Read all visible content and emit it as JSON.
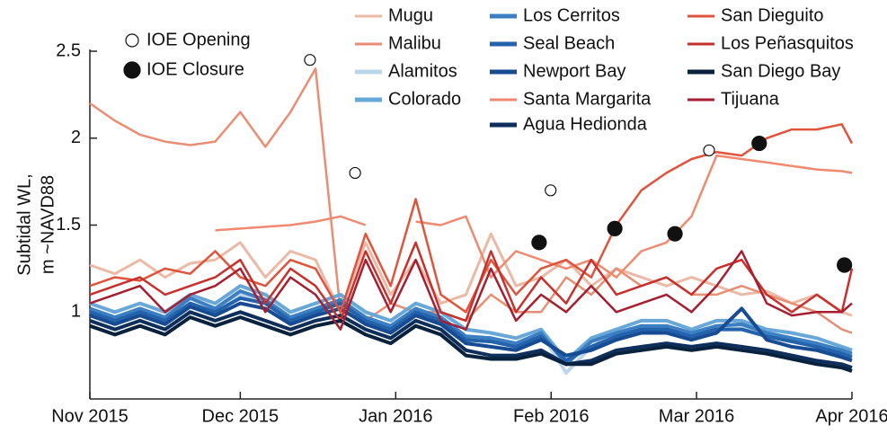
{
  "chart_data": {
    "type": "line",
    "ylabel": [
      "Subtidal WL,",
      "m ~NAVD88"
    ],
    "x": [
      0,
      5,
      10,
      15,
      20,
      25,
      30,
      35,
      40,
      45,
      50,
      55,
      60,
      65,
      70,
      75,
      80,
      85,
      90,
      95,
      100,
      105,
      110,
      115,
      120,
      125,
      130,
      135,
      140,
      145,
      150,
      152
    ],
    "xlim": [
      0,
      152
    ],
    "xticks": [
      {
        "value": 0,
        "label": "Nov 2015"
      },
      {
        "value": 30,
        "label": "Dec 2015"
      },
      {
        "value": 61,
        "label": "Jan 2016"
      },
      {
        "value": 92,
        "label": "Feb 2016"
      },
      {
        "value": 121,
        "label": "Mar 2016"
      },
      {
        "value": 152,
        "label": "Apr 2016"
      }
    ],
    "ylim": [
      0.5,
      2.5
    ],
    "yticks": [
      1,
      1.5,
      2,
      2.5
    ],
    "series": [
      {
        "name": "Mugu",
        "color": "#ebb9a6",
        "values": [
          1.27,
          1.22,
          1.3,
          1.2,
          1.28,
          1.3,
          1.4,
          1.2,
          1.35,
          1.3,
          1.0,
          1.4,
          1.1,
          1.3,
          1.05,
          1.1,
          1.45,
          1.15,
          1.2,
          1.3,
          1.15,
          1.25,
          1.2,
          1.15,
          1.2,
          1.15,
          1.1,
          1.12,
          1.05,
          1.1,
          1.0,
          0.98
        ]
      },
      {
        "name": "Malibu",
        "color": "#e98e74",
        "values": [
          2.2,
          2.1,
          2.02,
          1.98,
          1.96,
          1.98,
          2.15,
          1.95,
          2.15,
          2.4,
          1.0,
          0.95,
          1.05,
          1.0,
          1.0,
          0.95,
          1.1,
          1.0,
          1.0,
          1.2,
          1.1,
          1.25,
          1.15,
          1.2,
          1.1,
          1.1,
          1.15,
          1.1,
          1.05,
          1.0,
          0.9,
          0.88
        ]
      },
      {
        "name": "Alamitos",
        "color": "#bcd5ea",
        "values": [
          1.0,
          0.95,
          1.0,
          0.95,
          1.05,
          1.0,
          1.1,
          1.05,
          0.95,
          1.0,
          1.05,
          0.95,
          0.9,
          1.0,
          0.95,
          0.85,
          0.85,
          0.8,
          0.88,
          0.65,
          0.8,
          0.88,
          0.9,
          0.92,
          0.88,
          0.9,
          0.92,
          0.88,
          0.85,
          0.8,
          0.78,
          0.75
        ]
      },
      {
        "name": "Colorado",
        "color": "#68a8d8",
        "values": [
          1.05,
          1.0,
          1.05,
          1.0,
          1.1,
          1.05,
          1.15,
          1.1,
          1.0,
          1.05,
          1.1,
          1.0,
          0.95,
          1.05,
          1.0,
          0.9,
          0.88,
          0.85,
          0.9,
          0.72,
          0.85,
          0.9,
          0.95,
          0.95,
          0.9,
          0.95,
          0.95,
          0.9,
          0.88,
          0.85,
          0.8,
          0.78
        ]
      },
      {
        "name": "Los Cerritos",
        "color": "#3b7fc2",
        "values": [
          1.02,
          0.97,
          1.02,
          0.97,
          1.08,
          1.02,
          1.12,
          1.07,
          0.97,
          1.02,
          1.07,
          0.97,
          0.92,
          1.02,
          0.97,
          0.86,
          0.85,
          0.82,
          0.88,
          0.7,
          0.83,
          0.88,
          0.92,
          0.92,
          0.88,
          0.92,
          0.93,
          0.88,
          0.85,
          0.82,
          0.78,
          0.76
        ]
      },
      {
        "name": "Seal Beach",
        "color": "#2463ab",
        "values": [
          1.0,
          0.95,
          1.0,
          0.95,
          1.05,
          1.0,
          1.08,
          1.05,
          0.95,
          1.0,
          1.05,
          0.95,
          0.9,
          1.0,
          0.95,
          0.84,
          0.83,
          0.8,
          0.86,
          0.72,
          0.8,
          0.86,
          0.9,
          0.9,
          0.86,
          0.9,
          0.9,
          0.86,
          0.83,
          0.8,
          0.76,
          0.74
        ]
      },
      {
        "name": "Newport Bay",
        "color": "#184c92",
        "values": [
          0.98,
          0.93,
          0.98,
          0.93,
          1.03,
          0.98,
          1.05,
          1.02,
          0.93,
          0.98,
          1.02,
          0.93,
          0.88,
          0.98,
          0.93,
          0.82,
          0.8,
          0.78,
          0.84,
          0.75,
          0.78,
          0.84,
          0.88,
          0.88,
          0.84,
          0.88,
          1.02,
          0.84,
          0.8,
          0.78,
          0.74,
          0.72
        ]
      },
      {
        "name": "Santa Margarita",
        "color": "#ef8a70",
        "values": [
          null,
          null,
          null,
          null,
          null,
          1.47,
          1.48,
          1.49,
          1.5,
          1.52,
          1.55,
          1.5,
          null,
          1.52,
          1.5,
          1.55,
          1.2,
          1.35,
          1.3,
          1.25,
          1.3,
          1.2,
          1.35,
          1.4,
          1.55,
          1.9,
          1.88,
          1.86,
          1.84,
          1.82,
          1.81,
          1.8
        ]
      },
      {
        "name": "Agua Hedionda",
        "color": "#0e2e5c",
        "values": [
          0.95,
          0.9,
          0.95,
          0.9,
          1.0,
          0.95,
          1.0,
          0.95,
          0.9,
          0.95,
          0.98,
          0.9,
          0.85,
          0.95,
          0.9,
          0.78,
          0.75,
          0.75,
          0.78,
          0.7,
          0.72,
          0.78,
          0.8,
          0.82,
          0.8,
          0.82,
          0.8,
          0.78,
          0.75,
          0.72,
          0.7,
          0.68
        ]
      },
      {
        "name": "San Dieguito",
        "color": "#e0533c",
        "values": [
          1.15,
          1.2,
          1.18,
          1.25,
          1.22,
          1.35,
          1.2,
          1.15,
          1.3,
          1.25,
          1.0,
          1.45,
          1.15,
          1.65,
          1.1,
          1.0,
          1.3,
          1.1,
          1.25,
          1.3,
          1.2,
          1.5,
          1.7,
          1.8,
          1.88,
          1.92,
          1.9,
          2.0,
          2.05,
          2.05,
          2.08,
          1.97
        ]
      },
      {
        "name": "Los Peñasquitos",
        "color": "#c9302b",
        "values": [
          1.1,
          1.15,
          1.2,
          1.1,
          1.15,
          1.2,
          1.3,
          1.05,
          1.25,
          1.15,
          0.95,
          1.35,
          1.05,
          1.4,
          1.0,
          0.95,
          1.35,
          1.0,
          1.2,
          1.05,
          1.3,
          1.1,
          1.15,
          1.2,
          1.1,
          1.25,
          1.3,
          1.1,
          1.0,
          1.1,
          1.0,
          1.25
        ]
      },
      {
        "name": "San Diego Bay",
        "color": "#08213d",
        "values": [
          0.92,
          0.87,
          0.92,
          0.87,
          0.97,
          0.92,
          0.97,
          0.92,
          0.87,
          0.92,
          0.95,
          0.87,
          0.82,
          0.92,
          0.87,
          0.75,
          0.73,
          0.73,
          0.76,
          0.7,
          0.7,
          0.76,
          0.78,
          0.8,
          0.78,
          0.8,
          0.78,
          0.76,
          0.73,
          0.7,
          0.68,
          0.66
        ]
      },
      {
        "name": "Tijuana",
        "color": "#a61f30",
        "values": [
          1.05,
          1.1,
          1.15,
          1.0,
          1.1,
          1.15,
          1.25,
          1.0,
          1.2,
          1.1,
          0.9,
          1.3,
          1.0,
          1.3,
          0.95,
          0.9,
          1.25,
          0.95,
          1.1,
          1.0,
          1.15,
          1.0,
          1.05,
          1.1,
          1.0,
          1.15,
          1.35,
          1.05,
          0.98,
          1.0,
          1.0,
          1.05
        ]
      }
    ],
    "markers": [
      {
        "name": "IOE Opening",
        "filled": false,
        "x": [
          43.9,
          52.9,
          91.9,
          123.5
        ],
        "values": [
          2.45,
          1.8,
          1.7,
          1.93
        ]
      },
      {
        "name": "IOE Closure",
        "filled": true,
        "x": [
          89.6,
          104.7,
          116.7,
          133.5,
          150.5
        ],
        "values": [
          1.4,
          1.48,
          1.45,
          1.97,
          1.27
        ]
      }
    ]
  }
}
